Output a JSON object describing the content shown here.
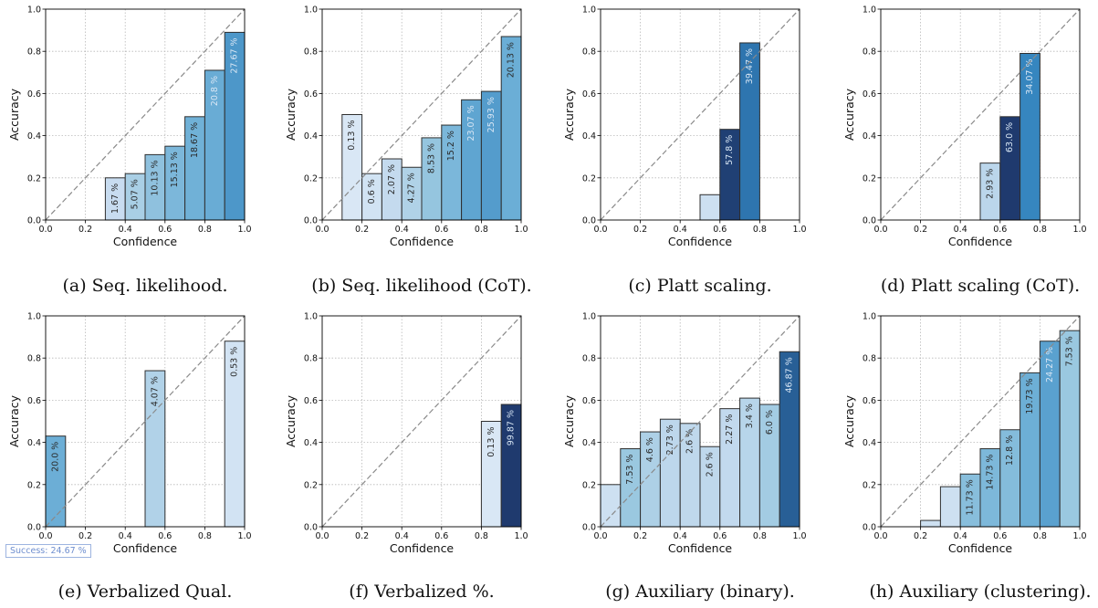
{
  "chart_data": [
    {
      "type": "bar",
      "caption": "(a) Seq. likelihood.",
      "xlabel": "Confidence",
      "ylabel": "Accuracy",
      "xlim": [
        0,
        1
      ],
      "ylim": [
        0,
        1
      ],
      "xticks": [
        "0.0",
        "0.2",
        "0.4",
        "0.6",
        "0.8",
        "1.0"
      ],
      "yticks": [
        "0.0",
        "0.2",
        "0.4",
        "0.6",
        "0.8",
        "1.0"
      ],
      "bars": [
        {
          "x0": 0.3,
          "acc": 0.2,
          "label": "1.67 %"
        },
        {
          "x0": 0.4,
          "acc": 0.22,
          "label": "5.07 %"
        },
        {
          "x0": 0.5,
          "acc": 0.31,
          "label": "10.13 %"
        },
        {
          "x0": 0.6,
          "acc": 0.35,
          "label": "15.13 %"
        },
        {
          "x0": 0.7,
          "acc": 0.49,
          "label": "18.67 %"
        },
        {
          "x0": 0.8,
          "acc": 0.71,
          "label": "20.8 %"
        },
        {
          "x0": 0.9,
          "acc": 0.89,
          "label": "27.67 %"
        }
      ]
    },
    {
      "type": "bar",
      "caption": "(b) Seq. likelihood (CoT).",
      "xlabel": "Confidence",
      "ylabel": "Accuracy",
      "xlim": [
        0,
        1
      ],
      "ylim": [
        0,
        1
      ],
      "xticks": [
        "0.0",
        "0.2",
        "0.4",
        "0.6",
        "0.8",
        "1.0"
      ],
      "yticks": [
        "0.0",
        "0.2",
        "0.4",
        "0.6",
        "0.8",
        "1.0"
      ],
      "bars": [
        {
          "x0": 0.1,
          "acc": 0.5,
          "label": "0.13 %"
        },
        {
          "x0": 0.2,
          "acc": 0.22,
          "label": "0.6 %"
        },
        {
          "x0": 0.3,
          "acc": 0.29,
          "label": "2.07 %"
        },
        {
          "x0": 0.4,
          "acc": 0.25,
          "label": "4.27 %"
        },
        {
          "x0": 0.5,
          "acc": 0.39,
          "label": "8.53 %"
        },
        {
          "x0": 0.6,
          "acc": 0.45,
          "label": "15.2 %"
        },
        {
          "x0": 0.7,
          "acc": 0.57,
          "label": "23.07 %"
        },
        {
          "x0": 0.8,
          "acc": 0.61,
          "label": "25.93 %"
        },
        {
          "x0": 0.9,
          "acc": 0.87,
          "label": "20.13 %"
        }
      ]
    },
    {
      "type": "bar",
      "caption": "(c) Platt scaling.",
      "xlabel": "Confidence",
      "ylabel": "Accuracy",
      "xlim": [
        0,
        1
      ],
      "ylim": [
        0,
        1
      ],
      "xticks": [
        "0.0",
        "0.2",
        "0.4",
        "0.6",
        "0.8",
        "1.0"
      ],
      "yticks": [
        "0.0",
        "0.2",
        "0.4",
        "0.6",
        "0.8",
        "1.0"
      ],
      "bars": [
        {
          "x0": 0.5,
          "acc": 0.12,
          "label": ""
        },
        {
          "x0": 0.6,
          "acc": 0.43,
          "label": "57.8 %"
        },
        {
          "x0": 0.7,
          "acc": 0.84,
          "label": "39.47 %"
        }
      ]
    },
    {
      "type": "bar",
      "caption": "(d) Platt scaling (CoT).",
      "xlabel": "Confidence",
      "ylabel": "Accuracy",
      "xlim": [
        0,
        1
      ],
      "ylim": [
        0,
        1
      ],
      "xticks": [
        "0.0",
        "0.2",
        "0.4",
        "0.6",
        "0.8",
        "1.0"
      ],
      "yticks": [
        "0.0",
        "0.2",
        "0.4",
        "0.6",
        "0.8",
        "1.0"
      ],
      "bars": [
        {
          "x0": 0.5,
          "acc": 0.27,
          "label": "2.93 %"
        },
        {
          "x0": 0.6,
          "acc": 0.49,
          "label": "63.0 %"
        },
        {
          "x0": 0.7,
          "acc": 0.79,
          "label": "34.07 %"
        }
      ]
    },
    {
      "type": "bar",
      "caption": "(e) Verbalized Qual.",
      "xlabel": "Confidence",
      "ylabel": "Accuracy",
      "xlim": [
        0,
        1
      ],
      "ylim": [
        0,
        1
      ],
      "xticks": [
        "0.0",
        "0.2",
        "0.4",
        "0.6",
        "0.8",
        "1.0"
      ],
      "yticks": [
        "0.0",
        "0.2",
        "0.4",
        "0.6",
        "0.8",
        "1.0"
      ],
      "bars": [
        {
          "x0": 0.0,
          "acc": 0.43,
          "label": "20.0 %"
        },
        {
          "x0": 0.5,
          "acc": 0.74,
          "label": "4.07 %"
        },
        {
          "x0": 0.9,
          "acc": 0.88,
          "label": "0.53 %"
        }
      ]
    },
    {
      "type": "bar",
      "caption": "(f) Verbalized %.",
      "xlabel": "Confidence",
      "ylabel": "Accuracy",
      "xlim": [
        0,
        1
      ],
      "ylim": [
        0,
        1
      ],
      "xticks": [
        "0.0",
        "0.2",
        "0.4",
        "0.6",
        "0.8",
        "1.0"
      ],
      "yticks": [
        "0.0",
        "0.2",
        "0.4",
        "0.6",
        "0.8",
        "1.0"
      ],
      "bars": [
        {
          "x0": 0.8,
          "acc": 0.5,
          "label": "0.13 %"
        },
        {
          "x0": 0.9,
          "acc": 0.58,
          "label": "99.87 %"
        }
      ]
    },
    {
      "type": "bar",
      "caption": "(g) Auxiliary (binary).",
      "xlabel": "Confidence",
      "ylabel": "Accuracy",
      "xlim": [
        0,
        1
      ],
      "ylim": [
        0,
        1
      ],
      "xticks": [
        "0.0",
        "0.2",
        "0.4",
        "0.6",
        "0.8",
        "1.0"
      ],
      "yticks": [
        "0.0",
        "0.2",
        "0.4",
        "0.6",
        "0.8",
        "1.0"
      ],
      "bars": [
        {
          "x0": 0.0,
          "acc": 0.2,
          "label": ""
        },
        {
          "x0": 0.1,
          "acc": 0.37,
          "label": "7.53 %"
        },
        {
          "x0": 0.2,
          "acc": 0.45,
          "label": "4.6 %"
        },
        {
          "x0": 0.3,
          "acc": 0.51,
          "label": "2.73 %"
        },
        {
          "x0": 0.4,
          "acc": 0.49,
          "label": "2.6 %"
        },
        {
          "x0": 0.5,
          "acc": 0.38,
          "label": "2.6 %"
        },
        {
          "x0": 0.6,
          "acc": 0.56,
          "label": "2.27 %"
        },
        {
          "x0": 0.7,
          "acc": 0.61,
          "label": "3.4 %"
        },
        {
          "x0": 0.8,
          "acc": 0.58,
          "label": "6.0 %"
        },
        {
          "x0": 0.9,
          "acc": 0.83,
          "label": "46.87 %"
        }
      ]
    },
    {
      "type": "bar",
      "caption": "(h) Auxiliary (clustering).",
      "xlabel": "Confidence",
      "ylabel": "Accuracy",
      "xlim": [
        0,
        1
      ],
      "ylim": [
        0,
        1
      ],
      "xticks": [
        "0.0",
        "0.2",
        "0.4",
        "0.6",
        "0.8",
        "1.0"
      ],
      "yticks": [
        "0.0",
        "0.2",
        "0.4",
        "0.6",
        "0.8",
        "1.0"
      ],
      "bars": [
        {
          "x0": 0.2,
          "acc": 0.03,
          "label": ""
        },
        {
          "x0": 0.3,
          "acc": 0.19,
          "label": ""
        },
        {
          "x0": 0.4,
          "acc": 0.25,
          "label": "11.73 %"
        },
        {
          "x0": 0.5,
          "acc": 0.37,
          "label": "14.73 %"
        },
        {
          "x0": 0.6,
          "acc": 0.46,
          "label": "12.8 %"
        },
        {
          "x0": 0.7,
          "acc": 0.73,
          "label": "19.73 %"
        },
        {
          "x0": 0.8,
          "acc": 0.88,
          "label": "24.27 %"
        },
        {
          "x0": 0.9,
          "acc": 0.93,
          "label": "7.53 %"
        }
      ]
    }
  ],
  "badge": "Success: 24.67 %"
}
